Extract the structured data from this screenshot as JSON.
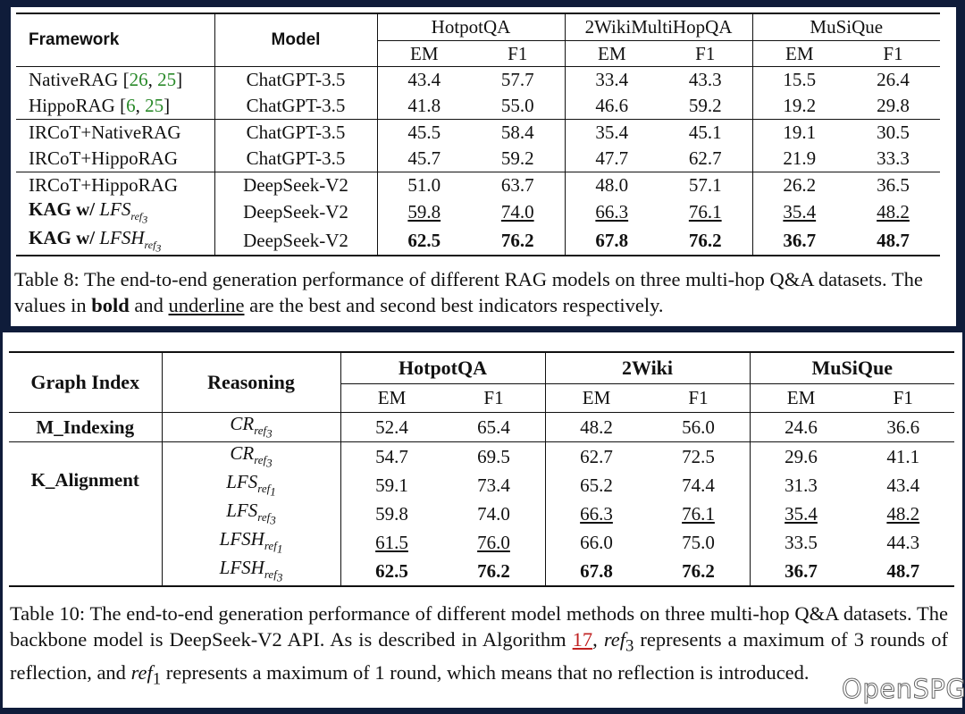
{
  "table8": {
    "framework_header": "Framework",
    "model_header": "Model",
    "datasets": [
      "HotpotQA",
      "2WikiMultiHopQA",
      "MuSiQue"
    ],
    "metrics": [
      "EM",
      "F1",
      "EM",
      "F1",
      "EM",
      "F1"
    ],
    "rows": [
      {
        "framework": "NativeRAG",
        "cite1": "26",
        "cite2": "25",
        "model": "ChatGPT-3.5",
        "values": [
          "43.4",
          "57.7",
          "33.4",
          "43.3",
          "15.5",
          "26.4"
        ]
      },
      {
        "framework": "HippoRAG",
        "cite1": "6",
        "cite2": "25",
        "model": "ChatGPT-3.5",
        "values": [
          "41.8",
          "55.0",
          "46.6",
          "59.2",
          "19.2",
          "29.8"
        ]
      },
      {
        "framework": "IRCoT+NativeRAG",
        "model": "ChatGPT-3.5",
        "values": [
          "45.5",
          "58.4",
          "35.4",
          "45.1",
          "19.1",
          "30.5"
        ]
      },
      {
        "framework": "IRCoT+HippoRAG",
        "model": "ChatGPT-3.5",
        "values": [
          "45.7",
          "59.2",
          "47.7",
          "62.7",
          "21.9",
          "33.3"
        ]
      },
      {
        "framework": "IRCoT+HippoRAG",
        "model": "DeepSeek-V2",
        "values": [
          "51.0",
          "63.7",
          "48.0",
          "57.1",
          "26.2",
          "36.5"
        ]
      },
      {
        "framework_bold": "KAG w/",
        "method_base": "LFS",
        "method_sub": "ref",
        "method_subsub": "3",
        "model": "DeepSeek-V2",
        "values": [
          "59.8",
          "74.0",
          "66.3",
          "76.1",
          "35.4",
          "48.2"
        ]
      },
      {
        "framework_bold": "KAG w/",
        "method_base": "LFSH",
        "method_sub": "ref",
        "method_subsub": "3",
        "model": "DeepSeek-V2",
        "values": [
          "62.5",
          "76.2",
          "67.8",
          "76.2",
          "36.7",
          "48.7"
        ]
      }
    ],
    "caption_pre": "Table 8: The end-to-end generation performance of different RAG models on three multi-hop Q&A datasets. The values in ",
    "caption_bold": "bold",
    "caption_mid": " and ",
    "caption_underline": "underline",
    "caption_post": " are the best and second best indicators respectively."
  },
  "table10": {
    "graph_index_header": "Graph Index",
    "reasoning_header": "Reasoning",
    "datasets": [
      "HotpotQA",
      "2Wiki",
      "MuSiQue"
    ],
    "metrics": [
      "EM",
      "F1",
      "EM",
      "F1",
      "EM",
      "F1"
    ],
    "group1_label": "M_Indexing",
    "group2_label": "K_Alignment",
    "rows": [
      {
        "base": "CR",
        "sub": "ref",
        "subsub": "3",
        "values": [
          "52.4",
          "65.4",
          "48.2",
          "56.0",
          "24.6",
          "36.6"
        ]
      },
      {
        "base": "CR",
        "sub": "ref",
        "subsub": "3",
        "values": [
          "54.7",
          "69.5",
          "62.7",
          "72.5",
          "29.6",
          "41.1"
        ]
      },
      {
        "base": "LFS",
        "sub": "ref",
        "subsub": "1",
        "values": [
          "59.1",
          "73.4",
          "65.2",
          "74.4",
          "31.3",
          "43.4"
        ]
      },
      {
        "base": "LFS",
        "sub": "ref",
        "subsub": "3",
        "values": [
          "59.8",
          "74.0",
          "66.3",
          "76.1",
          "35.4",
          "48.2"
        ]
      },
      {
        "base": "LFSH",
        "sub": "ref",
        "subsub": "1",
        "values": [
          "61.5",
          "76.0",
          "66.0",
          "75.0",
          "33.5",
          "44.3"
        ]
      },
      {
        "base": "LFSH",
        "sub": "ref",
        "subsub": "3",
        "values": [
          "62.5",
          "76.2",
          "67.8",
          "76.2",
          "36.7",
          "48.7"
        ]
      }
    ],
    "caption_pre": "Table 10: The end-to-end generation performance of different model methods on three multi-hop Q&A datasets. The backbone model is DeepSeek-V2 API. As is described in Algorithm ",
    "caption_link": "17",
    "caption_mid1": ", ",
    "caption_ref3": "ref",
    "caption_ref3_sub": "3",
    "caption_mid2": " represents a maximum of 3 rounds of reflection, and ",
    "caption_ref1": "ref",
    "caption_ref1_sub": "1",
    "caption_post": " represents a maximum of 1 round, which means that no reflection is introduced."
  },
  "watermark": "OpenSPG",
  "colors": {
    "background": "#0f1c3a",
    "citation": "#2a8a2a",
    "link": "#c02020"
  }
}
